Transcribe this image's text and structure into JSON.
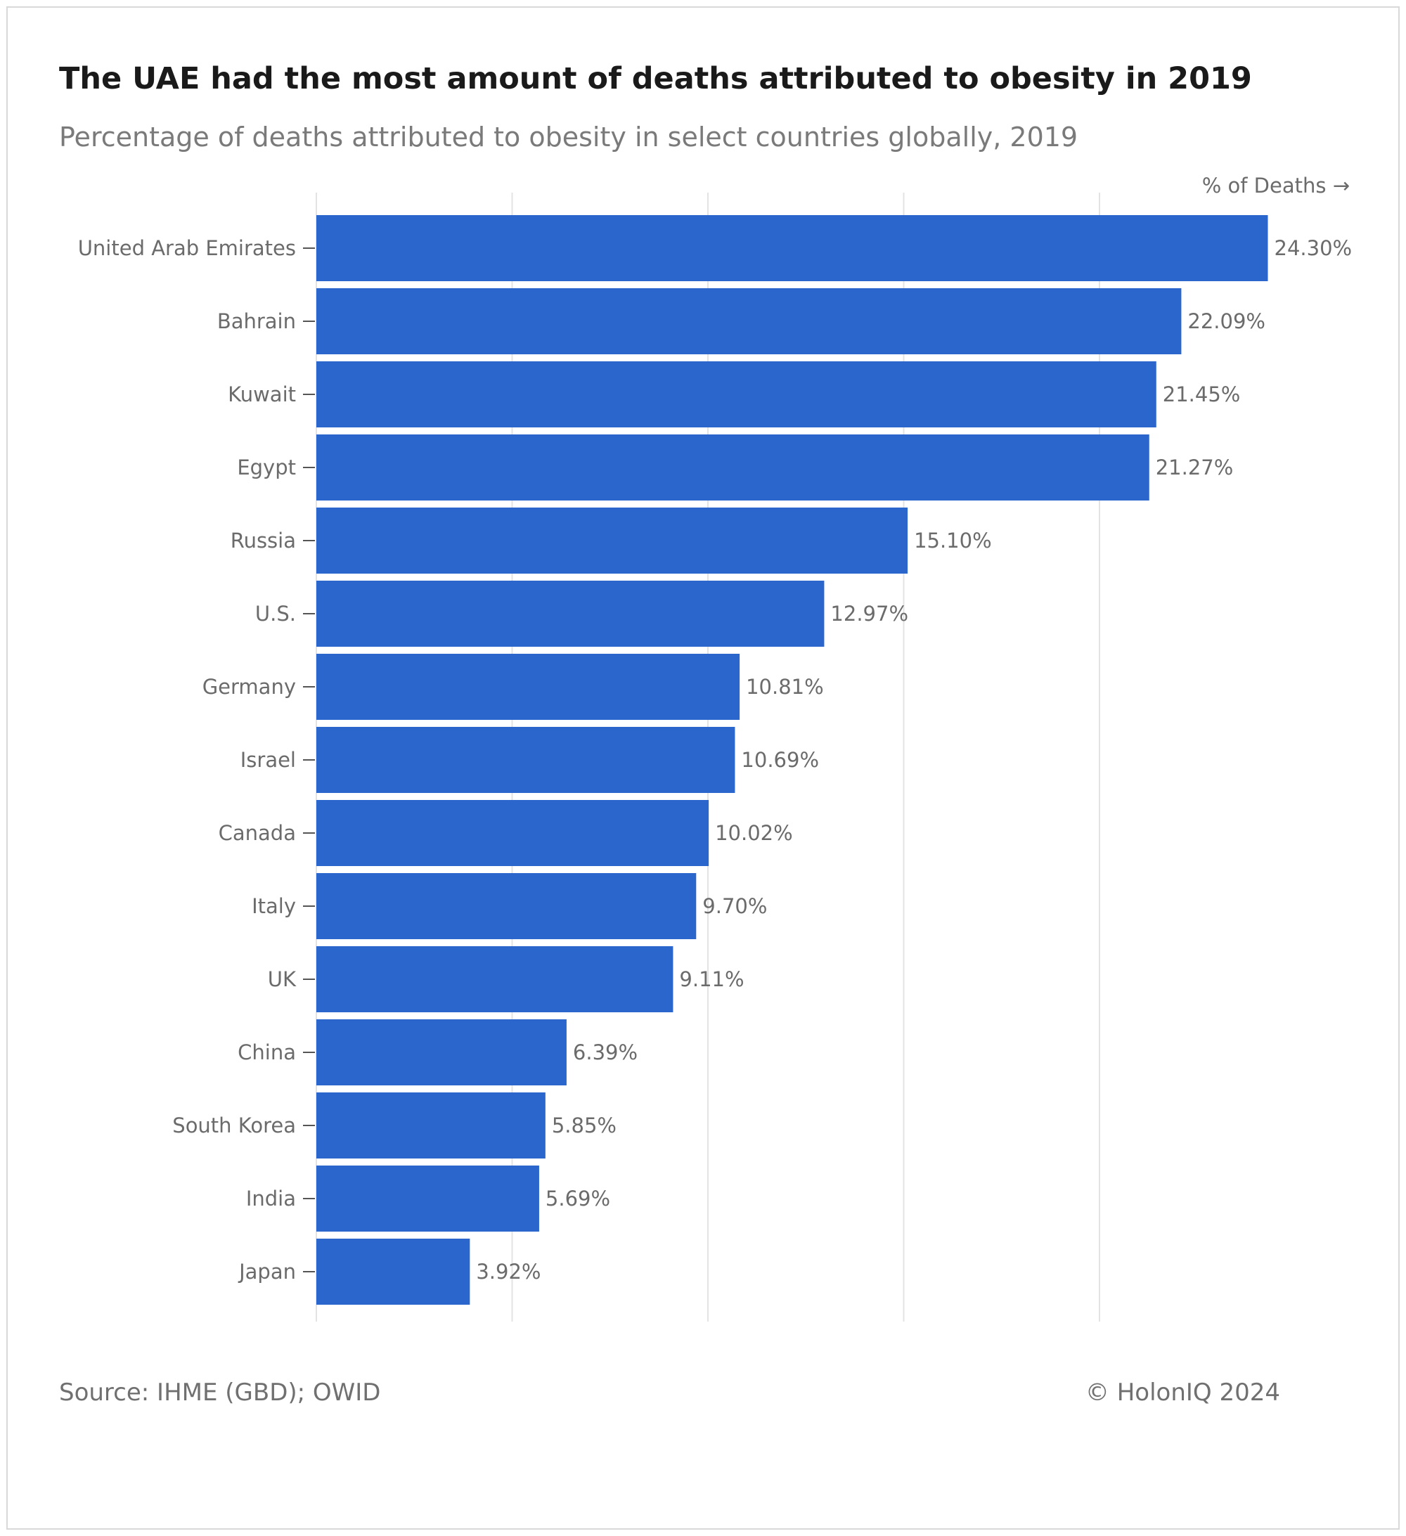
{
  "title": "The UAE had the most amount of deaths attributed to obesity in 2019",
  "subtitle": "Percentage of deaths attributed to obesity in select countries globally, 2019",
  "footer": {
    "source": "Source: IHME (GBD); OWID",
    "copyright": "© HolonIQ 2024"
  },
  "colors": {
    "bar": "#2b66cc",
    "grid": "#e3e3e3",
    "label_text": "#6b6b6b"
  },
  "chart_data": {
    "type": "bar",
    "orientation": "horizontal",
    "axis_title": "% of Deaths →",
    "categories": [
      "United Arab Emirates",
      "Bahrain",
      "Kuwait",
      "Egypt",
      "Russia",
      "U.S.",
      "Germany",
      "Israel",
      "Canada",
      "Italy",
      "UK",
      "China",
      "South Korea",
      "India",
      "Japan"
    ],
    "values": [
      24.3,
      22.09,
      21.45,
      21.27,
      15.1,
      12.97,
      10.81,
      10.69,
      10.02,
      9.7,
      9.11,
      6.39,
      5.85,
      5.69,
      3.92
    ],
    "value_labels": [
      "24.30%",
      "22.09%",
      "21.45%",
      "21.27%",
      "15.10%",
      "12.97%",
      "10.81%",
      "10.69%",
      "10.02%",
      "9.70%",
      "9.11%",
      "6.39%",
      "5.85%",
      "5.69%",
      "3.92%"
    ],
    "xlim": [
      0,
      25
    ],
    "x_gridlines": [
      0,
      5,
      10,
      15,
      20
    ],
    "grid": true,
    "legend": "none"
  }
}
